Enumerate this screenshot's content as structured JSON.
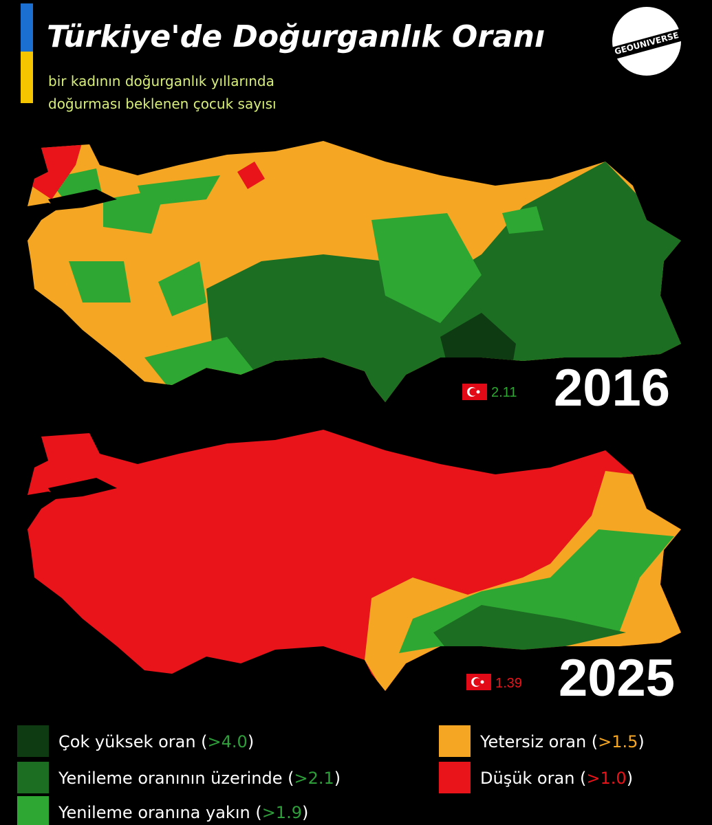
{
  "header": {
    "title": "Türkiye'de Doğurganlık Oranı",
    "subtitle": [
      "bir kadının doğurganlık yıllarında",
      "doğurması beklenen çocuk sayısı"
    ],
    "logo": "GEOUNIVERSE"
  },
  "maps": [
    {
      "year": "2016",
      "national_rate": 2.11
    },
    {
      "year": "2025",
      "national_rate": 1.39
    }
  ],
  "legend": [
    {
      "parts": [
        "Çok yüksek oran (",
        ">4.0",
        ")"
      ],
      "color": "#0e3b12",
      "threshold_color": "#2e9e3a"
    },
    {
      "parts": [
        "Yenileme oranının üzerinde (",
        ">2.1",
        ")"
      ],
      "color": "#1b6e22",
      "threshold_color": "#2e9e3a"
    },
    {
      "parts": [
        "Yenileme oranına yakın (",
        ">1.9",
        ")"
      ],
      "color": "#2ea832",
      "threshold_color": "#2e9e3a"
    },
    {
      "parts": [
        "Yetersiz oran (",
        ">1.5",
        ")"
      ],
      "color": "#f5a623",
      "threshold_color": "#f5a623"
    },
    {
      "parts": [
        "Düşük oran (",
        ">1.0",
        ")"
      ],
      "color": "#e8141a",
      "threshold_color": "#e8141a"
    }
  ]
}
